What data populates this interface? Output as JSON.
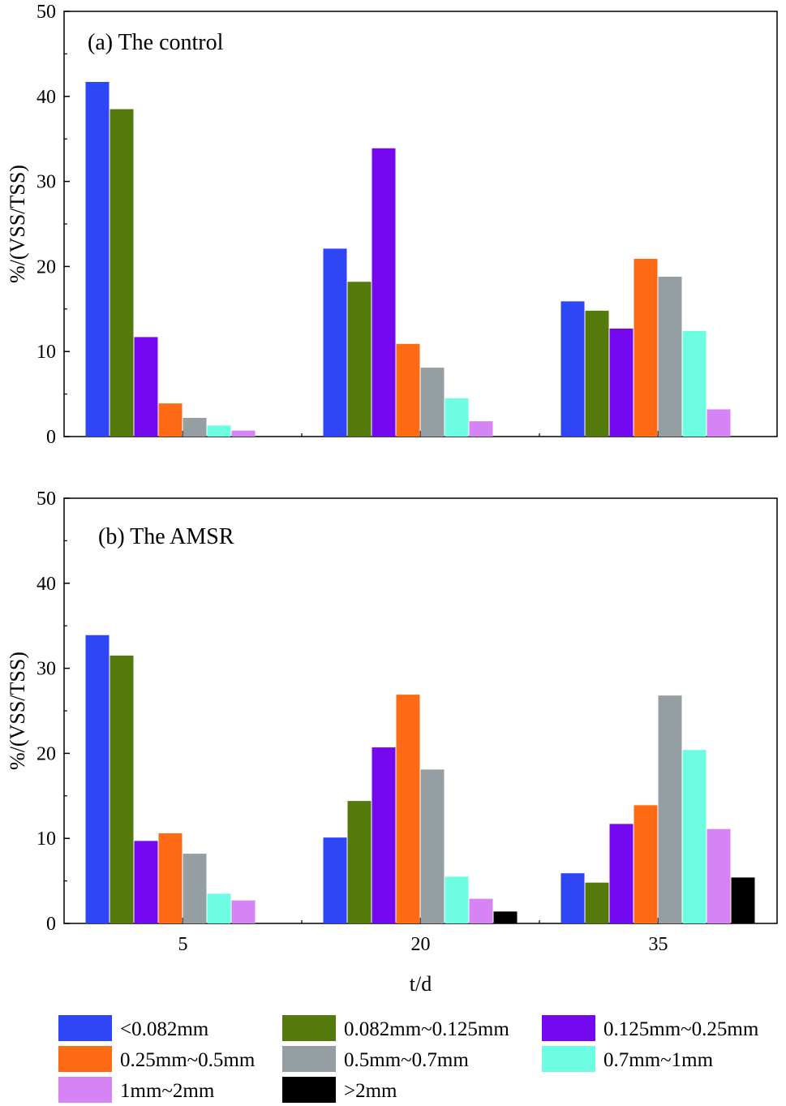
{
  "chart_data": [
    {
      "type": "bar",
      "title": "(a) The control",
      "xlabel": "",
      "ylabel": "%/(VSS/TSS)",
      "ylim": [
        0,
        50
      ],
      "yticks": [
        "0",
        "10",
        "20",
        "30",
        "40",
        "50"
      ],
      "categories": [
        "5",
        "20",
        "35"
      ],
      "show_xtick_labels": false,
      "series": [
        {
          "name": "<0.082mm",
          "values": [
            41.7,
            22.1,
            15.9
          ]
        },
        {
          "name": "0.082mm~0.125mm",
          "values": [
            38.5,
            18.2,
            14.8
          ]
        },
        {
          "name": "0.125mm~0.25mm",
          "values": [
            11.7,
            33.9,
            12.7
          ]
        },
        {
          "name": "0.25mm~0.5mm",
          "values": [
            3.9,
            10.9,
            20.9
          ]
        },
        {
          "name": "0.5mm~0.7mm",
          "values": [
            2.2,
            8.1,
            18.8
          ]
        },
        {
          "name": "0.7mm~1mm",
          "values": [
            1.3,
            4.5,
            12.4
          ]
        },
        {
          "name": "1mm~2mm",
          "values": [
            0.7,
            1.8,
            3.2
          ]
        },
        {
          "name": ">2mm",
          "values": [
            0,
            0,
            0
          ]
        }
      ]
    },
    {
      "type": "bar",
      "title": "(b) The AMSR",
      "xlabel": "t/d",
      "ylabel": "%/(VSS/TSS)",
      "ylim": [
        0,
        50
      ],
      "yticks": [
        "0",
        "10",
        "20",
        "30",
        "40",
        "50"
      ],
      "categories": [
        "5",
        "20",
        "35"
      ],
      "show_xtick_labels": true,
      "series": [
        {
          "name": "<0.082mm",
          "values": [
            33.9,
            10.1,
            5.9
          ]
        },
        {
          "name": "0.082mm~0.125mm",
          "values": [
            31.5,
            14.4,
            4.8
          ]
        },
        {
          "name": "0.125mm~0.25mm",
          "values": [
            9.7,
            20.7,
            11.7
          ]
        },
        {
          "name": "0.25mm~0.5mm",
          "values": [
            10.6,
            26.9,
            13.9
          ]
        },
        {
          "name": "0.5mm~0.7mm",
          "values": [
            8.2,
            18.1,
            26.8
          ]
        },
        {
          "name": "0.7mm~1mm",
          "values": [
            3.5,
            5.5,
            20.4
          ]
        },
        {
          "name": "1mm~2mm",
          "values": [
            2.7,
            2.9,
            11.1
          ]
        },
        {
          "name": ">2mm",
          "values": [
            0,
            1.4,
            5.4
          ]
        }
      ]
    }
  ],
  "legend": {
    "position": "bottom",
    "items": [
      {
        "label": "<0.082mm",
        "color": "#2e46f5"
      },
      {
        "label": "0.082mm~0.125mm",
        "color": "#557a0c"
      },
      {
        "label": "0.125mm~0.25mm",
        "color": "#7409f0"
      },
      {
        "label": "0.25mm~0.5mm",
        "color": "#ff6b14"
      },
      {
        "label": "0.5mm~0.7mm",
        "color": "#959ea2"
      },
      {
        "label": "0.7mm~1mm",
        "color": "#6dfde2"
      },
      {
        "label": "1mm~2mm",
        "color": "#d683f5"
      },
      {
        "label": ">2mm",
        "color": "#000000"
      }
    ]
  }
}
